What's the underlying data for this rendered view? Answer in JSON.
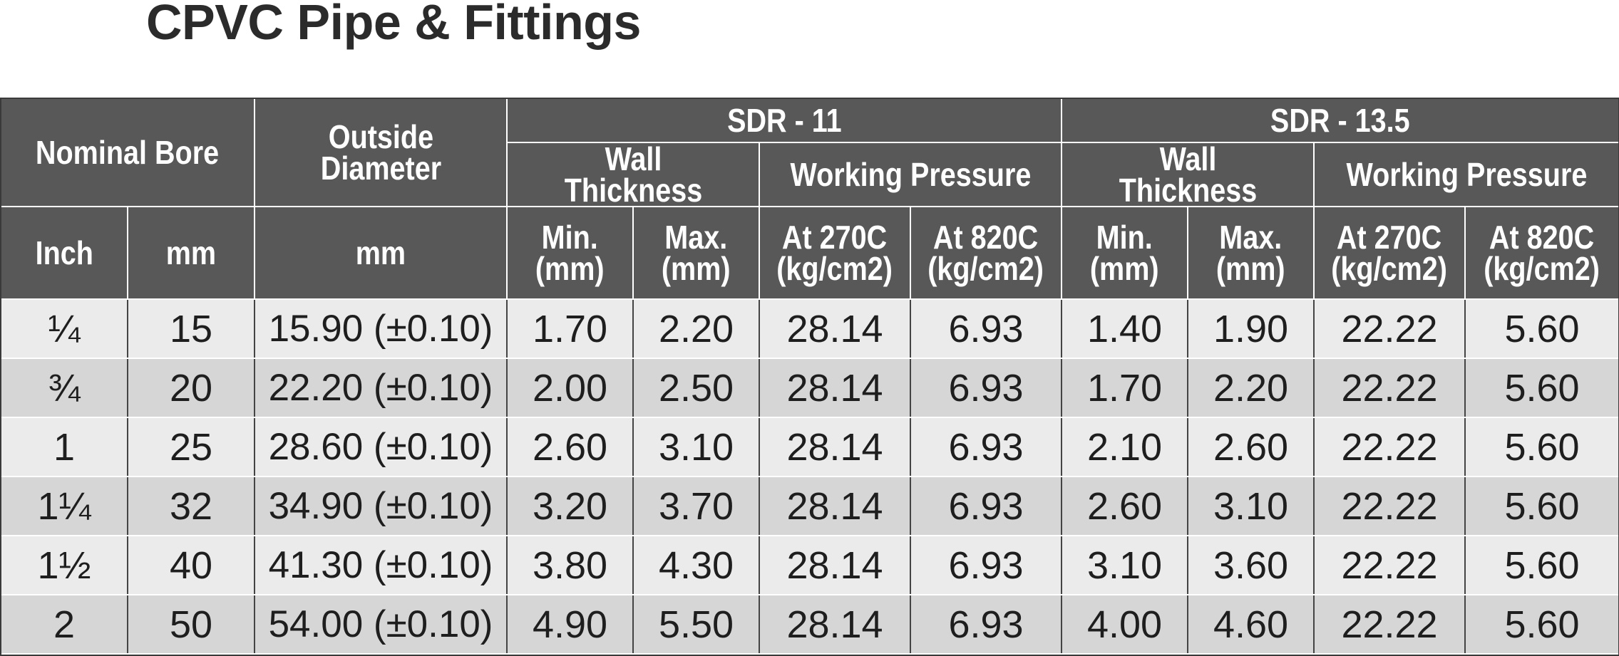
{
  "title": "CPVC Pipe & Fittings",
  "headers": {
    "nominal_bore": "Nominal Bore",
    "outside_diameter_l1": "Outside",
    "outside_diameter_l2": "Diameter",
    "sdr11": "SDR - 11",
    "sdr135": "SDR - 13.5",
    "wall_l1": "Wall",
    "wall_l2": "Thickness",
    "working_pressure": "Working Pressure",
    "inch": "Inch",
    "mm": "mm",
    "od_mm": "mm",
    "min_l1": "Min.",
    "min_l2": "(mm)",
    "max_l1": "Max.",
    "max_l2": "(mm)",
    "at270_l1": "At 270C",
    "at820_l1": "At 820C",
    "pressure_unit": "(kg/cm2)"
  },
  "rows": [
    {
      "inch": "¼",
      "mm": "15",
      "od": "15.90 (±0.10)",
      "s11_min": "1.70",
      "s11_max": "2.20",
      "s11_p27": "28.14",
      "s11_p82": "6.93",
      "s13_min": "1.40",
      "s13_max": "1.90",
      "s13_p27": "22.22",
      "s13_p82": "5.60"
    },
    {
      "inch": "¾",
      "mm": "20",
      "od": "22.20 (±0.10)",
      "s11_min": "2.00",
      "s11_max": "2.50",
      "s11_p27": "28.14",
      "s11_p82": "6.93",
      "s13_min": "1.70",
      "s13_max": "2.20",
      "s13_p27": "22.22",
      "s13_p82": "5.60"
    },
    {
      "inch": "1",
      "mm": "25",
      "od": "28.60 (±0.10)",
      "s11_min": "2.60",
      "s11_max": "3.10",
      "s11_p27": "28.14",
      "s11_p82": "6.93",
      "s13_min": "2.10",
      "s13_max": "2.60",
      "s13_p27": "22.22",
      "s13_p82": "5.60"
    },
    {
      "inch": "1¼",
      "mm": "32",
      "od": "34.90 (±0.10)",
      "s11_min": "3.20",
      "s11_max": "3.70",
      "s11_p27": "28.14",
      "s11_p82": "6.93",
      "s13_min": "2.60",
      "s13_max": "3.10",
      "s13_p27": "22.22",
      "s13_p82": "5.60"
    },
    {
      "inch": "1½",
      "mm": "40",
      "od": "41.30 (±0.10)",
      "s11_min": "3.80",
      "s11_max": "4.30",
      "s11_p27": "28.14",
      "s11_p82": "6.93",
      "s13_min": "3.10",
      "s13_max": "3.60",
      "s13_p27": "22.22",
      "s13_p82": "5.60"
    },
    {
      "inch": "2",
      "mm": "50",
      "od": "54.00 (±0.10)",
      "s11_min": "4.90",
      "s11_max": "5.50",
      "s11_p27": "28.14",
      "s11_p82": "6.93",
      "s13_min": "4.00",
      "s13_max": "4.60",
      "s13_p27": "22.22",
      "s13_p82": "5.60"
    }
  ]
}
